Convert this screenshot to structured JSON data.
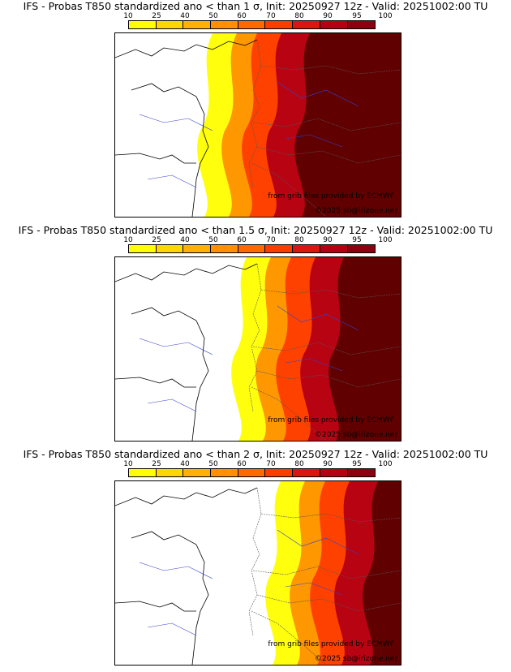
{
  "legend": {
    "values": [
      "10",
      "25",
      "40",
      "50",
      "60",
      "70",
      "80",
      "90",
      "95",
      "100"
    ],
    "colors": [
      "#ffff00",
      "#ffd700",
      "#ffb300",
      "#ff9100",
      "#ff6a00",
      "#ff3c00",
      "#e0140e",
      "#b40014",
      "#8a0010",
      "#5c0000"
    ]
  },
  "panels": [
    {
      "title": "IFS - Probas T850  standardized ano < than 1 σ, Init: 20250927 12z - Valid: 20251002:00 TU",
      "intensity": 1.0
    },
    {
      "title": "IFS - Probas T850  standardized ano < than 1.5 σ, Init: 20250927 12z - Valid: 20251002:00 TU",
      "intensity": 0.7
    },
    {
      "title": "IFS - Probas T850  standardized ano < than 2 σ, Init: 20250927 12z - Valid: 20251002:00 TU",
      "intensity": 0.4
    }
  ],
  "credits": {
    "grib": "from grib files provided by ECMWF",
    "copyright": "©2025 sb@irizone.net"
  }
}
